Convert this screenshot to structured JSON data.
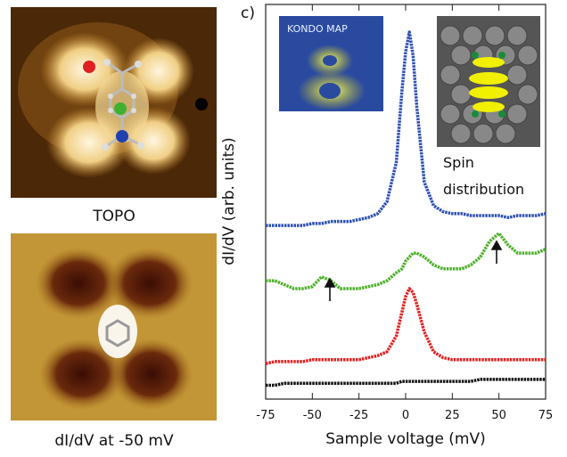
{
  "chart_data": {
    "type": "line",
    "panel_label": "c)",
    "xlabel": "Sample voltage (mV)",
    "ylabel": "dI/dV (arb. units)",
    "xlim": [
      -75,
      75
    ],
    "xticks": [
      -75,
      -50,
      -25,
      0,
      25,
      50,
      75
    ],
    "ylim": [
      0,
      1
    ],
    "x": [
      -75,
      -70,
      -65,
      -60,
      -55,
      -50,
      -45,
      -40,
      -35,
      -30,
      -25,
      -20,
      -15,
      -10,
      -5,
      -2,
      0,
      2,
      4,
      6,
      10,
      15,
      20,
      25,
      30,
      35,
      40,
      45,
      50,
      55,
      60,
      65,
      70,
      75
    ],
    "series": [
      {
        "color": "#2d4fb3",
        "values": [
          0.44,
          0.44,
          0.44,
          0.44,
          0.44,
          0.445,
          0.445,
          0.45,
          0.45,
          0.45,
          0.455,
          0.46,
          0.47,
          0.5,
          0.6,
          0.78,
          0.88,
          0.93,
          0.87,
          0.74,
          0.55,
          0.49,
          0.475,
          0.47,
          0.47,
          0.465,
          0.465,
          0.465,
          0.465,
          0.46,
          0.465,
          0.465,
          0.465,
          0.47
        ]
      },
      {
        "color": "#4db02a",
        "values": [
          0.3,
          0.3,
          0.29,
          0.28,
          0.28,
          0.285,
          0.31,
          0.3,
          0.28,
          0.28,
          0.28,
          0.285,
          0.29,
          0.3,
          0.32,
          0.33,
          0.35,
          0.36,
          0.37,
          0.37,
          0.36,
          0.34,
          0.33,
          0.33,
          0.33,
          0.34,
          0.36,
          0.4,
          0.42,
          0.39,
          0.37,
          0.37,
          0.37,
          0.38
        ]
      },
      {
        "color": "#e02222",
        "values": [
          0.09,
          0.095,
          0.095,
          0.095,
          0.095,
          0.1,
          0.1,
          0.1,
          0.1,
          0.1,
          0.1,
          0.105,
          0.11,
          0.12,
          0.16,
          0.22,
          0.26,
          0.28,
          0.27,
          0.24,
          0.17,
          0.12,
          0.105,
          0.1,
          0.1,
          0.1,
          0.1,
          0.1,
          0.1,
          0.1,
          0.1,
          0.1,
          0.1,
          0.1
        ]
      },
      {
        "color": "#111111",
        "values": [
          0.035,
          0.035,
          0.04,
          0.04,
          0.04,
          0.04,
          0.04,
          0.04,
          0.04,
          0.04,
          0.04,
          0.04,
          0.04,
          0.04,
          0.04,
          0.045,
          0.045,
          0.045,
          0.045,
          0.045,
          0.045,
          0.045,
          0.045,
          0.045,
          0.045,
          0.045,
          0.05,
          0.05,
          0.05,
          0.05,
          0.05,
          0.05,
          0.05,
          0.05
        ]
      }
    ],
    "inset_left_label": "KONDO MAP",
    "inset_right_label": [
      "Spin",
      "distribution"
    ]
  },
  "images": {
    "top_caption": "TOPO",
    "bottom_caption": "dI/dV at -50 mV"
  }
}
